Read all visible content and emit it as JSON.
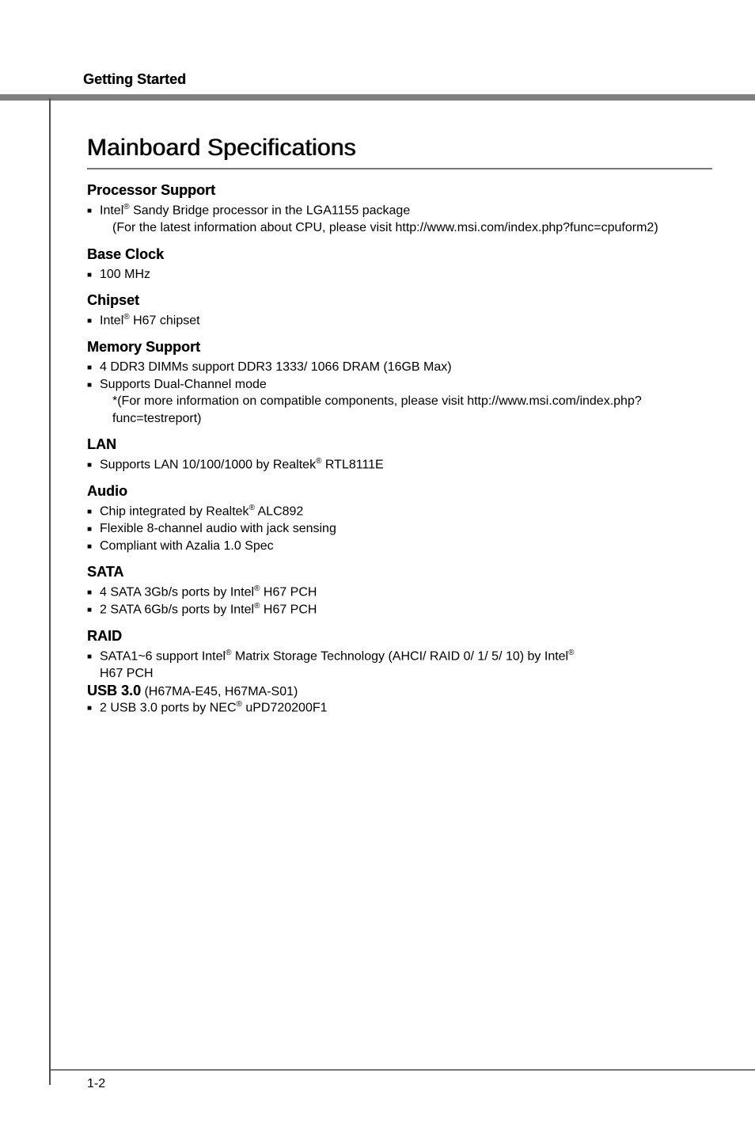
{
  "header": {
    "title": "Getting Started"
  },
  "page": {
    "title": "Mainboard Specifications",
    "page_number": "1-2"
  },
  "sections": {
    "processor": {
      "heading": "Processor Support",
      "items": [
        {
          "pre": "Intel",
          "sup": "®",
          "post": " Sandy Bridge processor in the LGA1155 package",
          "sub": "(For the latest information about CPU, please visit http://www.msi.com/index.php?func=cpuform2)"
        }
      ]
    },
    "baseclock": {
      "heading": "Base Clock",
      "items": [
        {
          "pre": "100 MHz"
        }
      ]
    },
    "chipset": {
      "heading": "Chipset",
      "items": [
        {
          "pre": "Intel",
          "sup": "®",
          "post": " H67 chipset"
        }
      ]
    },
    "memory": {
      "heading": "Memory Support",
      "items": [
        {
          "pre": "4 DDR3 DIMMs support DDR3 1333/ 1066 DRAM (16GB Max)"
        },
        {
          "pre": "Supports Dual-Channel mode",
          "sub": "*(For more information on compatible components, please visit http://www.msi.com/index.php?func=testreport)"
        }
      ]
    },
    "lan": {
      "heading": "LAN",
      "items": [
        {
          "pre": "Supports LAN 10/100/1000 by Realtek",
          "sup": "®",
          "post": " RTL8111E"
        }
      ]
    },
    "audio": {
      "heading": "Audio",
      "items": [
        {
          "pre": "Chip integrated by Realtek",
          "sup": "®",
          "post": " ALC892"
        },
        {
          "pre": "Flexible 8-channel audio with jack sensing"
        },
        {
          "pre": "Compliant with Azalia 1.0 Spec"
        }
      ]
    },
    "sata": {
      "heading": "SATA",
      "items": [
        {
          "pre": "4 SATA 3Gb/s ports by Intel",
          "sup": "®",
          "post": " H67 PCH"
        },
        {
          "pre": "2 SATA 6Gb/s ports by Intel",
          "sup": "®",
          "post": " H67 PCH"
        }
      ]
    },
    "raid": {
      "heading": "RAID",
      "items": [
        {
          "pre": "SATA1~6 support Intel",
          "sup": "®",
          "post": " Matrix Storage Technology (AHCI/ RAID 0/ 1/ 5/ 10) by Intel",
          "sup2": "®",
          "post2": " H67 PCH"
        }
      ]
    },
    "usb": {
      "heading": "USB 3.0",
      "note": " (H67MA-E45, H67MA-S01)",
      "items": [
        {
          "pre": "2 USB 3.0 ports by NEC",
          "sup": "®",
          "post": " uPD720200F1"
        }
      ]
    }
  }
}
